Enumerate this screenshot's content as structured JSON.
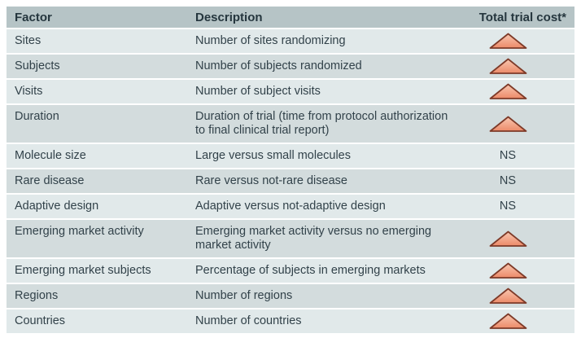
{
  "table": {
    "columns": [
      "Factor",
      "Description",
      "Total trial cost*"
    ],
    "rows": [
      {
        "factor": "Sites",
        "description": "Number of sites randomizing",
        "cost": "up"
      },
      {
        "factor": "Subjects",
        "description": "Number of subjects randomized",
        "cost": "up"
      },
      {
        "factor": "Visits",
        "description": "Number of subject visits",
        "cost": "up"
      },
      {
        "factor": "Duration",
        "description": "Duration of trial (time from protocol authorization to final clinical trial report)",
        "cost": "up"
      },
      {
        "factor": "Molecule size",
        "description": "Large versus small molecules",
        "cost": "NS"
      },
      {
        "factor": "Rare disease",
        "description": "Rare versus not-rare disease",
        "cost": "NS"
      },
      {
        "factor": "Adaptive design",
        "description": "Adaptive versus not-adaptive design",
        "cost": "NS"
      },
      {
        "factor": "Emerging market activity",
        "description": "Emerging market activity versus no emerging market activity",
        "cost": "up"
      },
      {
        "factor": "Emerging market subjects",
        "description": "Percentage of subjects in emerging markets",
        "cost": "up"
      },
      {
        "factor": "Regions",
        "description": "Number of regions",
        "cost": "up"
      },
      {
        "factor": "Countries",
        "description": "Number of countries",
        "cost": "up"
      }
    ],
    "cost_values": {
      "increase": "up",
      "not_significant": "NS"
    }
  },
  "icons": {
    "cost_increase": "up-triangle-icon"
  },
  "colors": {
    "header_bg": "#b6c4c6",
    "header_text": "#25363e",
    "row_light": "#e1e9ea",
    "row_dark": "#d3dcdd",
    "body_text": "#32424a",
    "triangle_fill_top": "#f9c7b0",
    "triangle_fill_bottom": "#ec8a69",
    "triangle_border": "#7d3a28"
  }
}
